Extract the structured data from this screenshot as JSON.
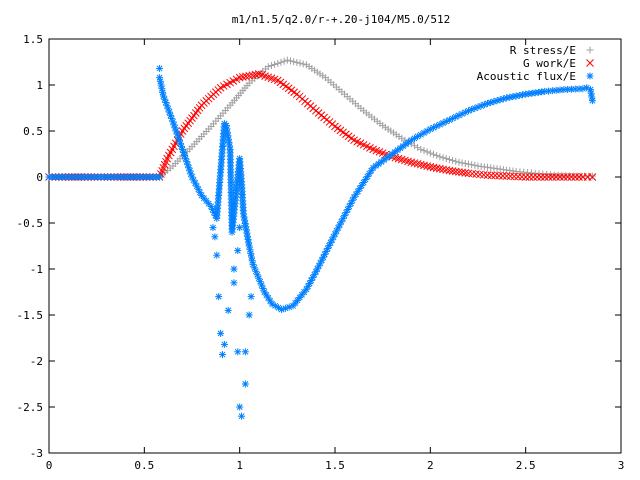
{
  "chart_data": {
    "type": "scatter",
    "title": "m1/n1.5/q2.0/r-+.20-j104/M5.0/512",
    "xlabel": "",
    "ylabel": "",
    "xlim": [
      0,
      3
    ],
    "ylim": [
      -3,
      1.5
    ],
    "x_ticks": [
      "0",
      "0.5",
      "1",
      "1.5",
      "2",
      "2.5",
      "3"
    ],
    "y_ticks": [
      "1.5",
      "1",
      "0.5",
      "0",
      "-0.5",
      "-1",
      "-1.5",
      "-2",
      "-2.5",
      "-3"
    ],
    "legend_position": "top-right",
    "grid": false,
    "series": [
      {
        "name": "R stress/E",
        "marker": "+",
        "color": "#a0a0a0",
        "points": [
          [
            0,
            0
          ],
          [
            0.58,
            0
          ],
          [
            0.65,
            0.12
          ],
          [
            0.75,
            0.33
          ],
          [
            0.85,
            0.55
          ],
          [
            0.95,
            0.78
          ],
          [
            1.05,
            1.02
          ],
          [
            1.15,
            1.2
          ],
          [
            1.25,
            1.27
          ],
          [
            1.35,
            1.22
          ],
          [
            1.45,
            1.08
          ],
          [
            1.55,
            0.9
          ],
          [
            1.65,
            0.72
          ],
          [
            1.75,
            0.56
          ],
          [
            1.85,
            0.42
          ],
          [
            1.95,
            0.3
          ],
          [
            2.05,
            0.22
          ],
          [
            2.15,
            0.16
          ],
          [
            2.25,
            0.12
          ],
          [
            2.35,
            0.09
          ],
          [
            2.45,
            0.06
          ],
          [
            2.55,
            0.04
          ],
          [
            2.65,
            0.02
          ],
          [
            2.75,
            0.01
          ],
          [
            2.85,
            0.01
          ]
        ]
      },
      {
        "name": "G work/E",
        "marker": "x",
        "color": "#ff0000",
        "points": [
          [
            0,
            0
          ],
          [
            0.58,
            0
          ],
          [
            0.62,
            0.2
          ],
          [
            0.7,
            0.5
          ],
          [
            0.8,
            0.78
          ],
          [
            0.9,
            0.97
          ],
          [
            1.0,
            1.08
          ],
          [
            1.1,
            1.12
          ],
          [
            1.2,
            1.05
          ],
          [
            1.3,
            0.9
          ],
          [
            1.4,
            0.72
          ],
          [
            1.5,
            0.55
          ],
          [
            1.6,
            0.4
          ],
          [
            1.7,
            0.3
          ],
          [
            1.8,
            0.22
          ],
          [
            1.9,
            0.16
          ],
          [
            2.0,
            0.11
          ],
          [
            2.1,
            0.07
          ],
          [
            2.2,
            0.04
          ],
          [
            2.3,
            0.02
          ],
          [
            2.4,
            0.01
          ],
          [
            2.5,
            0.0
          ],
          [
            2.6,
            0.0
          ],
          [
            2.7,
            0.0
          ],
          [
            2.8,
            0.0
          ],
          [
            2.85,
            0.0
          ]
        ]
      },
      {
        "name": "Acoustic flux/E",
        "marker": "*",
        "color": "#0080ff",
        "points": [
          [
            0,
            0
          ],
          [
            0.2,
            0
          ],
          [
            0.4,
            0
          ],
          [
            0.58,
            0
          ],
          [
            0.58,
            1.18
          ],
          [
            0.58,
            1.08
          ],
          [
            0.6,
            0.88
          ],
          [
            0.65,
            0.6
          ],
          [
            0.7,
            0.3
          ],
          [
            0.75,
            0.0
          ],
          [
            0.8,
            -0.2
          ],
          [
            0.85,
            -0.32
          ],
          [
            0.88,
            -0.45
          ],
          [
            0.92,
            0.58
          ],
          [
            0.93,
            0.56
          ],
          [
            0.95,
            0.3
          ],
          [
            0.96,
            -0.6
          ],
          [
            1.0,
            0.2
          ],
          [
            1.01,
            -0.05
          ],
          [
            1.02,
            -0.4
          ],
          [
            1.05,
            -0.75
          ],
          [
            1.07,
            -0.95
          ],
          [
            1.1,
            -1.1
          ],
          [
            1.13,
            -1.25
          ],
          [
            1.17,
            -1.38
          ],
          [
            1.22,
            -1.44
          ],
          [
            1.28,
            -1.4
          ],
          [
            1.35,
            -1.22
          ],
          [
            1.4,
            -1.03
          ],
          [
            1.5,
            -0.62
          ],
          [
            1.6,
            -0.22
          ],
          [
            1.7,
            0.1
          ],
          [
            1.8,
            0.25
          ],
          [
            1.9,
            0.4
          ],
          [
            2.0,
            0.52
          ],
          [
            2.1,
            0.62
          ],
          [
            2.2,
            0.72
          ],
          [
            2.3,
            0.8
          ],
          [
            2.4,
            0.86
          ],
          [
            2.5,
            0.9
          ],
          [
            2.6,
            0.93
          ],
          [
            2.7,
            0.95
          ],
          [
            2.8,
            0.96
          ],
          [
            2.82,
            0.97
          ],
          [
            2.84,
            0.95
          ],
          [
            2.85,
            0.83
          ],
          [
            0.9,
            -1.7
          ],
          [
            0.91,
            -1.93
          ],
          [
            0.92,
            -1.82
          ],
          [
            0.94,
            -1.45
          ],
          [
            0.86,
            -0.55
          ],
          [
            0.87,
            -0.65
          ],
          [
            0.88,
            -0.85
          ],
          [
            0.89,
            -1.3
          ],
          [
            0.99,
            -1.9
          ],
          [
            1.0,
            -2.5
          ],
          [
            1.01,
            -2.6
          ],
          [
            1.03,
            -2.25
          ],
          [
            1.03,
            -1.9
          ],
          [
            0.97,
            -1.15
          ],
          [
            0.97,
            -1.0
          ],
          [
            1.05,
            -1.5
          ],
          [
            1.06,
            -1.3
          ],
          [
            0.99,
            -0.8
          ],
          [
            1.0,
            -0.55
          ]
        ]
      }
    ]
  }
}
